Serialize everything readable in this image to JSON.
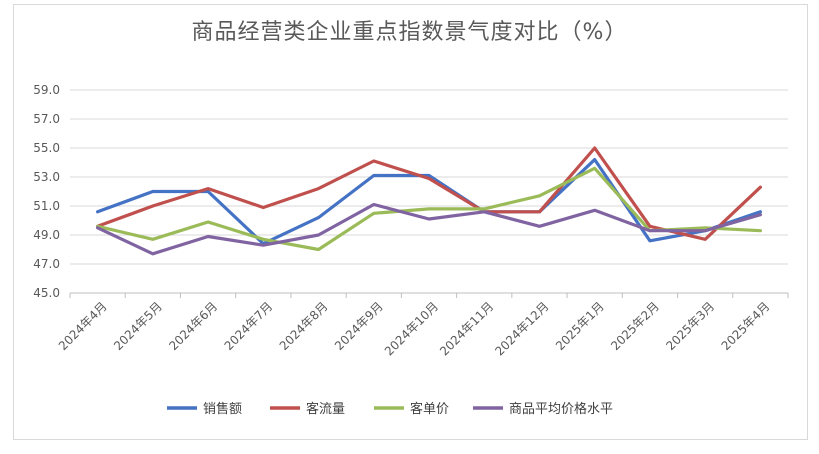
{
  "chart_data": {
    "type": "line",
    "title": "商品经营类企业重点指数景气度对比（%）",
    "categories": [
      "2024年4月",
      "2024年5月",
      "2024年6月",
      "2024年7月",
      "2024年8月",
      "2024年9月",
      "2024年10月",
      "2024年11月",
      "2024年12月",
      "2025年1月",
      "2025年2月",
      "2025年3月",
      "2025年4月"
    ],
    "y_ticks": [
      "45.0",
      "47.0",
      "49.0",
      "51.0",
      "53.0",
      "55.0",
      "57.0",
      "59.0"
    ],
    "ylim": [
      45,
      59
    ],
    "grid": "horizontal",
    "legend_position": "bottom",
    "series": [
      {
        "name": "销售额",
        "color": "#4472C4",
        "values": [
          50.6,
          52.0,
          52.0,
          48.4,
          50.2,
          53.1,
          53.1,
          50.6,
          50.6,
          54.2,
          48.6,
          49.3,
          50.6
        ]
      },
      {
        "name": "客流量",
        "color": "#C0504D",
        "values": [
          49.6,
          51.0,
          52.2,
          50.9,
          52.2,
          54.1,
          52.9,
          50.6,
          50.6,
          55.0,
          49.6,
          48.7,
          52.3
        ]
      },
      {
        "name": "客单价",
        "color": "#9BBB59",
        "values": [
          49.6,
          48.7,
          49.9,
          48.7,
          48.0,
          50.5,
          50.8,
          50.8,
          51.7,
          53.6,
          49.3,
          49.5,
          49.3
        ]
      },
      {
        "name": "商品平均价格水平",
        "color": "#8064A2",
        "values": [
          49.5,
          47.7,
          48.9,
          48.3,
          49.0,
          51.1,
          50.1,
          50.6,
          49.6,
          50.7,
          49.3,
          49.3,
          50.4
        ]
      }
    ]
  }
}
